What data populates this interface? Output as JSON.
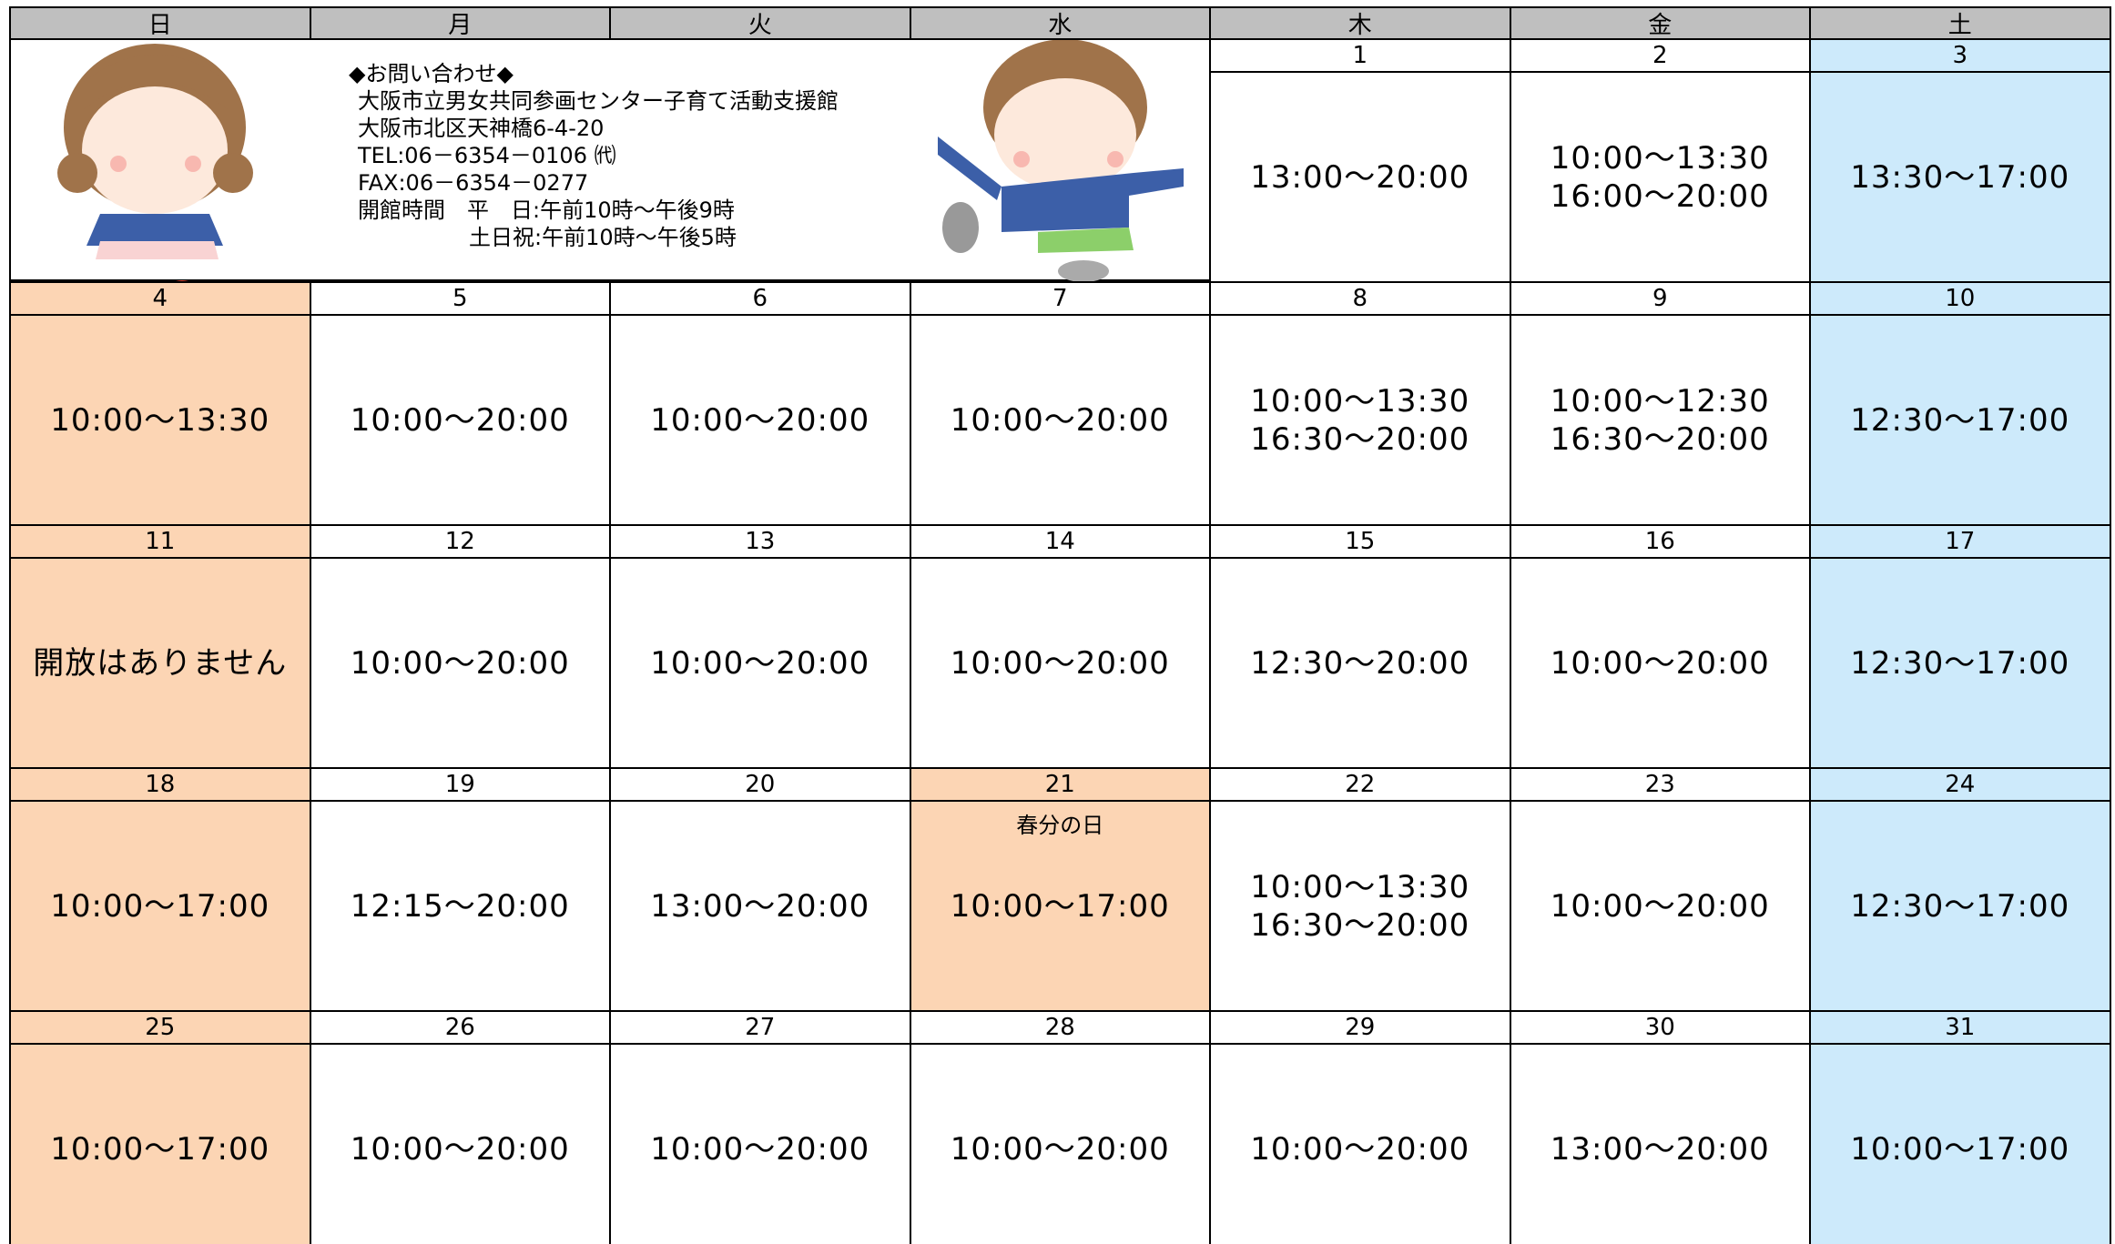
{
  "headers": [
    "日",
    "月",
    "火",
    "水",
    "木",
    "金",
    "土"
  ],
  "info": {
    "title": "◆お問い合わせ◆",
    "lines": [
      "大阪市立男女共同参画センター子育て活動支援館",
      "大阪市北区天神橋6-4-20",
      "TEL:06－6354－0106 ㈹",
      "FAX:06－6354－0277",
      "開館時間　平　日:午前10時～午後9時"
    ],
    "hours_weekend": "土日祝:午前10時～午後5時"
  },
  "colors": {
    "header": "#bfbfbf",
    "sunday": "#fcd5b4",
    "saturday": "#cdeafb"
  },
  "weeks": [
    [
      {
        "date": "1",
        "hours": [
          "13:00～20:00"
        ]
      },
      {
        "date": "2",
        "hours": [
          "10:00～13:30",
          "16:00～20:00"
        ]
      },
      {
        "date": "3",
        "hours": [
          "13:30～17:00"
        ],
        "bg": "saturday"
      }
    ],
    [
      {
        "date": "4",
        "hours": [
          "10:00～13:30"
        ],
        "bg": "sunday"
      },
      {
        "date": "5",
        "hours": [
          "10:00～20:00"
        ]
      },
      {
        "date": "6",
        "hours": [
          "10:00～20:00"
        ]
      },
      {
        "date": "7",
        "hours": [
          "10:00～20:00"
        ]
      },
      {
        "date": "8",
        "hours": [
          "10:00～13:30",
          "16:30～20:00"
        ]
      },
      {
        "date": "9",
        "hours": [
          "10:00～12:30",
          "16:30～20:00"
        ]
      },
      {
        "date": "10",
        "hours": [
          "12:30～17:00"
        ],
        "bg": "saturday"
      }
    ],
    [
      {
        "date": "11",
        "hours": [
          "開放はありません"
        ],
        "bg": "sunday"
      },
      {
        "date": "12",
        "hours": [
          "10:00～20:00"
        ]
      },
      {
        "date": "13",
        "hours": [
          "10:00～20:00"
        ]
      },
      {
        "date": "14",
        "hours": [
          "10:00～20:00"
        ]
      },
      {
        "date": "15",
        "hours": [
          "12:30～20:00"
        ]
      },
      {
        "date": "16",
        "hours": [
          "10:00～20:00"
        ]
      },
      {
        "date": "17",
        "hours": [
          "12:30～17:00"
        ],
        "bg": "saturday"
      }
    ],
    [
      {
        "date": "18",
        "hours": [
          "10:00～17:00"
        ],
        "bg": "sunday"
      },
      {
        "date": "19",
        "hours": [
          "12:15～20:00"
        ]
      },
      {
        "date": "20",
        "hours": [
          "13:00～20:00"
        ]
      },
      {
        "date": "21",
        "note": "春分の日",
        "hours": [
          "10:00～17:00"
        ],
        "bg": "sunday"
      },
      {
        "date": "22",
        "hours": [
          "10:00～13:30",
          "16:30～20:00"
        ]
      },
      {
        "date": "23",
        "hours": [
          "10:00～20:00"
        ]
      },
      {
        "date": "24",
        "hours": [
          "12:30～17:00"
        ],
        "bg": "saturday"
      }
    ],
    [
      {
        "date": "25",
        "hours": [
          "10:00～17:00"
        ],
        "bg": "sunday"
      },
      {
        "date": "26",
        "hours": [
          "10:00～20:00"
        ]
      },
      {
        "date": "27",
        "hours": [
          "10:00～20:00"
        ]
      },
      {
        "date": "28",
        "hours": [
          "10:00～20:00"
        ]
      },
      {
        "date": "29",
        "hours": [
          "10:00～20:00"
        ]
      },
      {
        "date": "30",
        "hours": [
          "13:00～20:00"
        ]
      },
      {
        "date": "31",
        "hours": [
          "10:00～17:00"
        ],
        "bg": "saturday"
      }
    ]
  ]
}
